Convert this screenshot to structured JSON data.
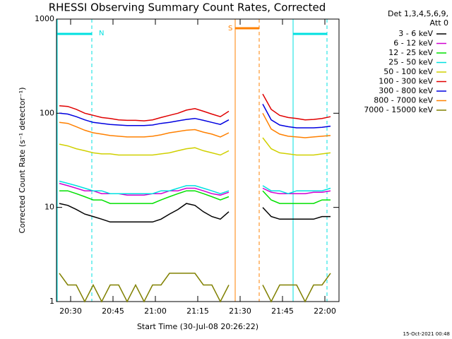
{
  "chart_data": {
    "type": "line",
    "log_y": true,
    "title": "RHESSI Observing Summary Count Rates, Corrected",
    "x_label": "Start Time (30-Jul-08 20:26:22)",
    "y_label": "Corrected Count Rate (s⁻¹ detector⁻¹)",
    "legend_title": [
      "Det 1,3,4,5,6,9,",
      "Att 0"
    ],
    "footer": "15-Oct-2021 00:48",
    "annotations": [
      "N",
      "S"
    ],
    "x": [
      "20:26",
      "20:29",
      "20:32",
      "20:35",
      "20:38",
      "20:41",
      "20:44",
      "20:47",
      "20:50",
      "20:53",
      "20:56",
      "20:59",
      "21:02",
      "21:05",
      "21:08",
      "21:11",
      "21:14",
      "21:17",
      "21:20",
      "21:23",
      "21:26",
      "21:32",
      "21:38",
      "21:41",
      "21:44",
      "21:47",
      "21:50",
      "21:53",
      "21:56",
      "21:59",
      "22:02"
    ],
    "xlim": [
      "20:25",
      "22:05"
    ],
    "xticks": [
      "20:30",
      "20:45",
      "21:00",
      "21:15",
      "21:30",
      "21:45",
      "22:00"
    ],
    "ylim": [
      1,
      1000
    ],
    "yticks": [
      1,
      10,
      100,
      1000
    ],
    "series": [
      {
        "name": "3 - 6 keV",
        "color": "#000000",
        "values": [
          11,
          10.5,
          9.5,
          8.5,
          8,
          7.5,
          7,
          7,
          7,
          7,
          7,
          7,
          7.5,
          8.5,
          9.5,
          11,
          10.5,
          9,
          8,
          7.5,
          9,
          null,
          10,
          8,
          7.5,
          7.5,
          7.5,
          7.5,
          7.5,
          8,
          8
        ]
      },
      {
        "name": "6 - 12 keV",
        "color": "#d000d0",
        "values": [
          18,
          17,
          16,
          15,
          15,
          14,
          14,
          14,
          13.5,
          13.5,
          13.5,
          14,
          14,
          15,
          15,
          16,
          16,
          15,
          14,
          13.5,
          14.5,
          null,
          16,
          14.5,
          14,
          14,
          14,
          14,
          14.5,
          14.5,
          15
        ]
      },
      {
        "name": "12 - 25 keV",
        "color": "#00e000",
        "values": [
          15,
          15,
          14,
          13,
          12,
          12,
          11,
          11,
          11,
          11,
          11,
          11,
          12,
          13,
          14,
          15,
          15,
          14,
          13,
          12,
          13,
          null,
          15,
          12,
          11,
          11,
          11,
          11,
          11,
          12,
          12
        ]
      },
      {
        "name": "25 - 50 keV",
        "color": "#00e0e0",
        "values": [
          19,
          18,
          17,
          16,
          15,
          15,
          14,
          14,
          14,
          14,
          14,
          14,
          15,
          15,
          16,
          17,
          17,
          16,
          15,
          14,
          15,
          null,
          17,
          15,
          15,
          14,
          15,
          15,
          15,
          15,
          16
        ]
      },
      {
        "name": "50 - 100 keV",
        "color": "#d0d000",
        "values": [
          47,
          45,
          42,
          40,
          38,
          37,
          37,
          36,
          36,
          36,
          36,
          36,
          37,
          38,
          40,
          42,
          43,
          40,
          38,
          36,
          40,
          null,
          55,
          42,
          38,
          37,
          36,
          36,
          36,
          37,
          38
        ]
      },
      {
        "name": "100 - 300 keV",
        "color": "#e00000",
        "values": [
          120,
          118,
          110,
          100,
          95,
          90,
          88,
          85,
          84,
          84,
          83,
          85,
          90,
          95,
          100,
          108,
          112,
          105,
          98,
          92,
          105,
          null,
          160,
          110,
          95,
          90,
          88,
          85,
          86,
          88,
          92
        ]
      },
      {
        "name": "300 - 800 keV",
        "color": "#0000e0",
        "values": [
          100,
          98,
          92,
          85,
          80,
          78,
          76,
          75,
          74,
          74,
          74,
          75,
          78,
          80,
          83,
          86,
          88,
          84,
          80,
          76,
          85,
          null,
          125,
          85,
          75,
          72,
          70,
          70,
          70,
          71,
          73
        ]
      },
      {
        "name": "800 - 7000 keV",
        "color": "#ff8000",
        "values": [
          80,
          78,
          72,
          66,
          62,
          60,
          58,
          57,
          56,
          56,
          56,
          57,
          59,
          62,
          64,
          66,
          67,
          63,
          60,
          56,
          62,
          null,
          100,
          68,
          60,
          57,
          56,
          55,
          56,
          57,
          58
        ]
      },
      {
        "name": "7000 - 15000 keV",
        "color": "#808000",
        "values": [
          2,
          1.5,
          1.5,
          1,
          1.5,
          1,
          1.5,
          1.5,
          1,
          1.5,
          1,
          1.5,
          1.5,
          2,
          2,
          2,
          2,
          1.5,
          1.5,
          1,
          1.5,
          null,
          1.5,
          1,
          1.5,
          1.5,
          1.5,
          1,
          1.5,
          1.5,
          2
        ]
      }
    ]
  }
}
